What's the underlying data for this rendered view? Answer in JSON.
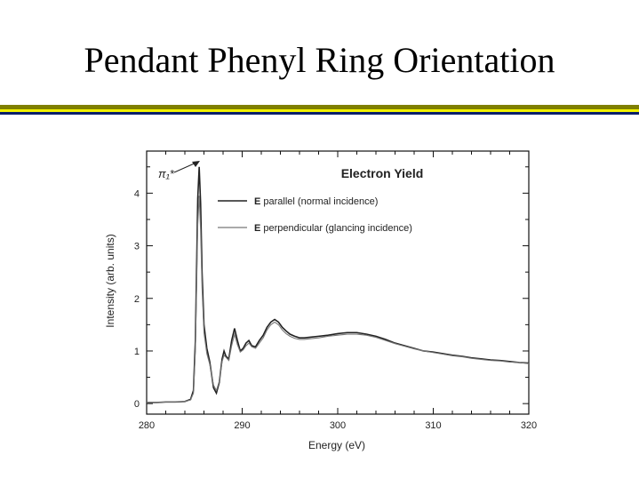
{
  "slide": {
    "title": "Pendant Phenyl Ring Orientation",
    "rule_colors": [
      "#7f7f00",
      "#f2f200",
      "#0a1f6b"
    ]
  },
  "chart_data": {
    "type": "line",
    "title": "Electron Yield",
    "xlabel": "Energy (eV)",
    "ylabel": "Intensity (arb. units)",
    "xlim": [
      280,
      320
    ],
    "ylim": [
      -0.2,
      4.8
    ],
    "xticks": [
      280,
      290,
      300,
      310,
      320
    ],
    "yticks": [
      0,
      1,
      2,
      3,
      4
    ],
    "grid": false,
    "legend_position": "top-right",
    "annotation": {
      "label": "π₁*",
      "x": 285.5,
      "y": 4.5
    },
    "series": [
      {
        "name": "E parallel (normal incidence)",
        "color": "#222222",
        "x": [
          280,
          281,
          282,
          283,
          284,
          284.6,
          284.9,
          285.1,
          285.25,
          285.35,
          285.5,
          285.65,
          285.8,
          286.0,
          286.3,
          286.6,
          287.0,
          287.3,
          287.6,
          287.9,
          288.1,
          288.3,
          288.6,
          288.9,
          289.2,
          289.5,
          289.8,
          290.1,
          290.4,
          290.7,
          291.0,
          291.4,
          291.8,
          292.2,
          292.6,
          293.0,
          293.4,
          293.8,
          294.2,
          294.6,
          295.0,
          295.5,
          296.0,
          296.5,
          297,
          298,
          299,
          300,
          301,
          302,
          303,
          304,
          305,
          306,
          307,
          308,
          309,
          310,
          311,
          312,
          313,
          314,
          315,
          316,
          317,
          318,
          319,
          320
        ],
        "y": [
          0.02,
          0.02,
          0.03,
          0.03,
          0.04,
          0.08,
          0.25,
          1.2,
          2.8,
          3.9,
          4.5,
          3.8,
          2.5,
          1.5,
          1.05,
          0.8,
          0.3,
          0.2,
          0.4,
          0.85,
          1.0,
          0.9,
          0.85,
          1.2,
          1.43,
          1.2,
          1.0,
          1.05,
          1.15,
          1.2,
          1.1,
          1.08,
          1.2,
          1.3,
          1.45,
          1.55,
          1.6,
          1.55,
          1.45,
          1.38,
          1.32,
          1.28,
          1.25,
          1.25,
          1.26,
          1.28,
          1.3,
          1.33,
          1.35,
          1.35,
          1.32,
          1.28,
          1.22,
          1.15,
          1.1,
          1.05,
          1.0,
          0.98,
          0.95,
          0.92,
          0.9,
          0.87,
          0.85,
          0.83,
          0.82,
          0.8,
          0.78,
          0.77
        ]
      },
      {
        "name": "E perpendicular (glancing incidence)",
        "color": "#777777",
        "x": [
          280,
          281,
          282,
          283,
          284,
          284.6,
          284.9,
          285.1,
          285.25,
          285.35,
          285.5,
          285.65,
          285.8,
          286.0,
          286.3,
          286.6,
          287.0,
          287.3,
          287.6,
          287.9,
          288.1,
          288.3,
          288.6,
          288.9,
          289.2,
          289.5,
          289.8,
          290.1,
          290.4,
          290.7,
          291.0,
          291.4,
          291.8,
          292.2,
          292.6,
          293.0,
          293.4,
          293.8,
          294.2,
          294.6,
          295.0,
          295.5,
          296.0,
          296.5,
          297,
          298,
          299,
          300,
          301,
          302,
          303,
          304,
          305,
          306,
          307,
          308,
          309,
          310,
          311,
          312,
          313,
          314,
          315,
          316,
          317,
          318,
          319,
          320
        ],
        "y": [
          0.02,
          0.02,
          0.03,
          0.03,
          0.04,
          0.07,
          0.2,
          1.0,
          2.4,
          3.4,
          3.95,
          3.3,
          2.2,
          1.35,
          0.95,
          0.75,
          0.35,
          0.25,
          0.42,
          0.8,
          0.92,
          0.88,
          0.82,
          1.1,
          1.32,
          1.12,
          0.98,
          1.02,
          1.1,
          1.15,
          1.08,
          1.05,
          1.15,
          1.25,
          1.4,
          1.5,
          1.55,
          1.5,
          1.4,
          1.33,
          1.28,
          1.24,
          1.22,
          1.22,
          1.23,
          1.25,
          1.28,
          1.3,
          1.32,
          1.32,
          1.3,
          1.26,
          1.2,
          1.14,
          1.09,
          1.04,
          1.0,
          0.97,
          0.94,
          0.91,
          0.89,
          0.86,
          0.84,
          0.82,
          0.81,
          0.79,
          0.78,
          0.76
        ]
      }
    ]
  }
}
